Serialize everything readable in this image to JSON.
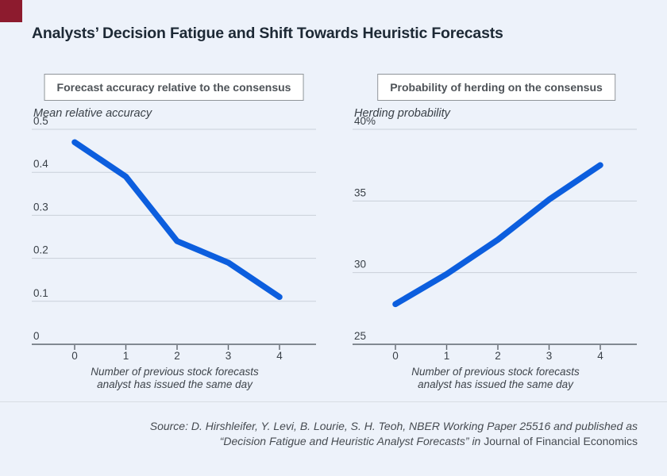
{
  "page": {
    "title": "Analysts’ Decision Fatigue and Shift Towards Heuristic Forecasts",
    "background_color": "#EDF2FA",
    "accent_square_color": "#8D1B2E",
    "line_color": "#0C5EDE",
    "gridline_color": "#C9D0D9",
    "axis_color": "#5F666E"
  },
  "source": {
    "line1": "Source: D. Hirshleifer, Y. Levi, B. Lourie, S. H. Teoh, NBER Working Paper 25516 and published as",
    "line2_italic": "“Decision Fatigue and Heuristic Analyst Forecasts” in ",
    "line2_roman": "Journal of Financial Economics"
  },
  "chart_data": [
    {
      "type": "line",
      "panel_label": "Forecast accuracy relative to the consensus",
      "axis_title": "Mean relative accuracy",
      "x": [
        0,
        1,
        2,
        3,
        4
      ],
      "values": [
        0.47,
        0.39,
        0.24,
        0.19,
        0.11
      ],
      "ylim": [
        0,
        0.5
      ],
      "yticks": [
        {
          "value": 0.5,
          "label": "0.5"
        },
        {
          "value": 0.4,
          "label": "0.4"
        },
        {
          "value": 0.3,
          "label": "0.3"
        },
        {
          "value": 0.2,
          "label": "0.2"
        },
        {
          "value": 0.1,
          "label": "0.1"
        },
        {
          "value": 0,
          "label": "0"
        }
      ],
      "xticks": [
        "0",
        "1",
        "2",
        "3",
        "4"
      ],
      "xlabel_line1": "Number of previous stock forecasts",
      "xlabel_line2": "analyst has issued the same day",
      "grid": true,
      "legend": false
    },
    {
      "type": "line",
      "panel_label": "Probability of herding on the consensus",
      "axis_title": "Herding probability",
      "x": [
        0,
        1,
        2,
        3,
        4
      ],
      "values": [
        27.8,
        29.9,
        32.3,
        35.1,
        37.5
      ],
      "ylim": [
        25,
        40
      ],
      "yticks": [
        {
          "value": 40,
          "label": "40%"
        },
        {
          "value": 35,
          "label": "35"
        },
        {
          "value": 30,
          "label": "30"
        },
        {
          "value": 25,
          "label": "25"
        }
      ],
      "xticks": [
        "0",
        "1",
        "2",
        "3",
        "4"
      ],
      "xlabel_line1": "Number of previous stock forecasts",
      "xlabel_line2": "analyst has issued the same day",
      "grid": true,
      "legend": false
    }
  ]
}
